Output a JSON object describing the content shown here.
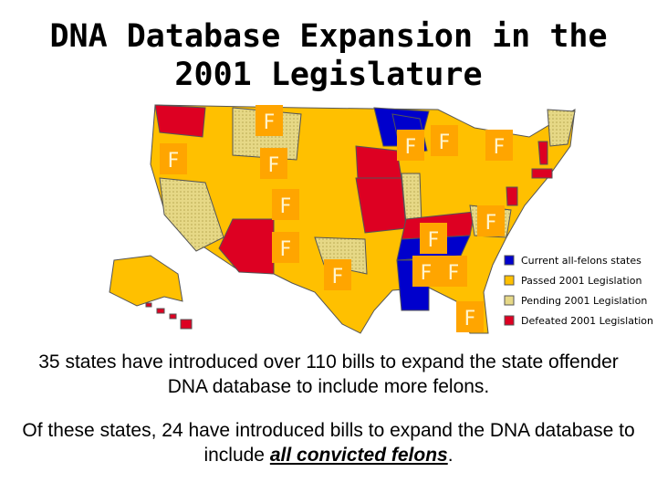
{
  "header": {
    "title_lines": [
      "DNA Database Expansion in the",
      "2001 Legislature"
    ]
  },
  "map": {
    "markers": [
      "F",
      "F",
      "F",
      "F",
      "F",
      "F",
      "F",
      "F",
      "F",
      "F",
      "F",
      "F",
      "F",
      "F"
    ]
  },
  "legend": {
    "items": [
      {
        "label": "Current all-felons states",
        "color": "#0000cc"
      },
      {
        "label": "Passed 2001 Legislation",
        "color": "#ffc000"
      },
      {
        "label": "Pending 2001 Legislation",
        "color": "#e6d886"
      },
      {
        "label": "Defeated 2001 Legislation",
        "color": "#dd0022"
      }
    ]
  },
  "body": {
    "paragraph1": "35 states have introduced over 110 bills to expand the state offender DNA database to include more felons.",
    "paragraph2": {
      "before": "Of these states, 24 have introduced bills to expand the DNA database to include ",
      "emphasis": "all convicted felons",
      "after": "."
    }
  }
}
